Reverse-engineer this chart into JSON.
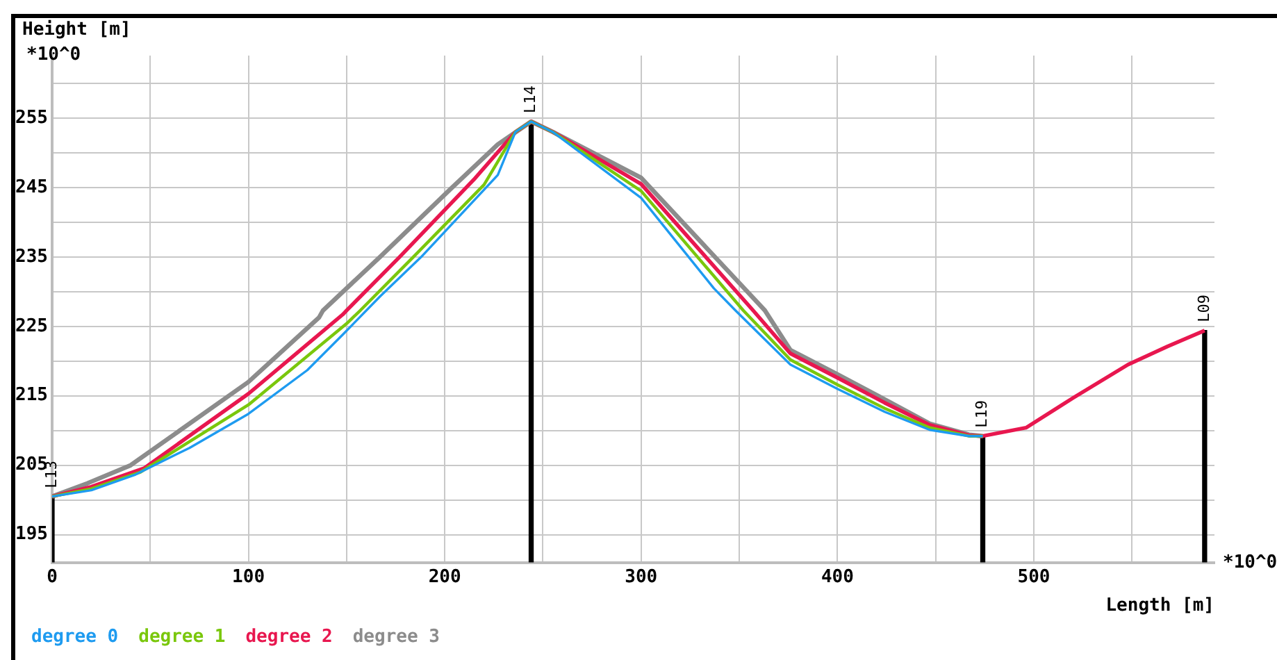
{
  "chart_data": {
    "type": "line",
    "ylabel": "Height [m]",
    "xlabel": "Length [m]",
    "annotations": [
      "*10^0",
      "*10^0",
      {
        "text": "L13",
        "x": 0,
        "y": 200.5
      },
      {
        "text": "L14",
        "x": 244,
        "y": 254.5
      },
      {
        "text": "L19",
        "x": 474,
        "y": 209.2
      },
      {
        "text": "L09",
        "x": 587,
        "y": 224.4
      }
    ],
    "xlim": [
      0,
      592
    ],
    "ylim": [
      191,
      264
    ],
    "xticks": [
      0,
      {
        "value": 50,
        "label": null
      },
      100,
      {
        "value": 150,
        "label": null
      },
      200,
      {
        "value": 250,
        "label": null
      },
      300,
      {
        "value": 350,
        "label": null
      },
      400,
      {
        "value": 450,
        "label": null
      },
      500,
      {
        "value": 550,
        "label": null
      }
    ],
    "yticks": [
      195,
      {
        "value": 200,
        "label": null
      },
      205,
      {
        "value": 210,
        "label": null
      },
      215,
      {
        "value": 220,
        "label": null
      },
      225,
      {
        "value": 230,
        "label": null
      },
      235,
      {
        "value": 240,
        "label": null
      },
      245,
      {
        "value": 250,
        "label": null
      },
      255,
      {
        "value": 260,
        "label": null
      }
    ],
    "grid": true,
    "legend": "bottom",
    "marker": "none",
    "line_style": "solid",
    "series": [
      {
        "type": "bar",
        "color": "#000000",
        "x": [
          0,
          244,
          474,
          587
        ],
        "values": [
          200.5,
          254.5,
          209.2,
          224.4
        ]
      },
      {
        "name": "degree 0",
        "color": "#1e9bf0",
        "x": [
          0,
          20,
          42,
          70,
          100,
          130,
          148,
          167,
          188,
          227,
          236,
          244,
          255,
          300,
          337,
          348,
          376,
          400,
          424,
          447,
          467,
          474
        ],
        "values": [
          200.5,
          201.4,
          203.6,
          207.5,
          212.4,
          218.7,
          223.8,
          229.3,
          235,
          246.8,
          253,
          254.5,
          253,
          243.5,
          230.5,
          227.3,
          219.5,
          216,
          212.7,
          210.1,
          209.2,
          209.2
        ]
      },
      {
        "name": "degree 1",
        "color": "#7ac70c",
        "x": [
          0,
          20,
          45,
          100,
          150,
          157,
          184,
          220,
          236,
          244,
          255,
          300,
          352,
          376,
          400,
          424,
          447,
          467,
          474
        ],
        "values": [
          200.5,
          201.6,
          204,
          213.7,
          225.4,
          227.3,
          235,
          245.4,
          253,
          254.5,
          253,
          244.5,
          227.3,
          220.2,
          216.6,
          213.2,
          210.4,
          209.2,
          209.2
        ]
      },
      {
        "name": "degree 2",
        "color": "#e8174f",
        "x": [
          0,
          20,
          47,
          100,
          148,
          150,
          177,
          215,
          236,
          244,
          255,
          300,
          357,
          376,
          400,
          424,
          447,
          467,
          474,
          496,
          520,
          548,
          568,
          587
        ],
        "values": [
          200.5,
          201.9,
          204.6,
          215.3,
          226.7,
          227.3,
          235,
          246.2,
          253,
          254.5,
          253,
          245.5,
          227.3,
          221.1,
          217.6,
          214,
          210.8,
          209.3,
          209.2,
          210.4,
          214.7,
          219.5,
          222.1,
          224.4
        ]
      },
      {
        "name": "degree 3",
        "color": "#8c8c8c",
        "x": [
          0,
          18,
          40,
          100,
          136,
          138,
          167,
          203,
          227,
          244,
          255,
          300,
          363,
          376,
          400,
          424,
          447,
          467,
          474
        ],
        "values": [
          200.5,
          202.4,
          205,
          217,
          226.3,
          227.3,
          235,
          244.8,
          251.2,
          254.5,
          253,
          246.4,
          227.3,
          221.6,
          218.1,
          214.5,
          211,
          209.4,
          209.2
        ]
      }
    ]
  }
}
